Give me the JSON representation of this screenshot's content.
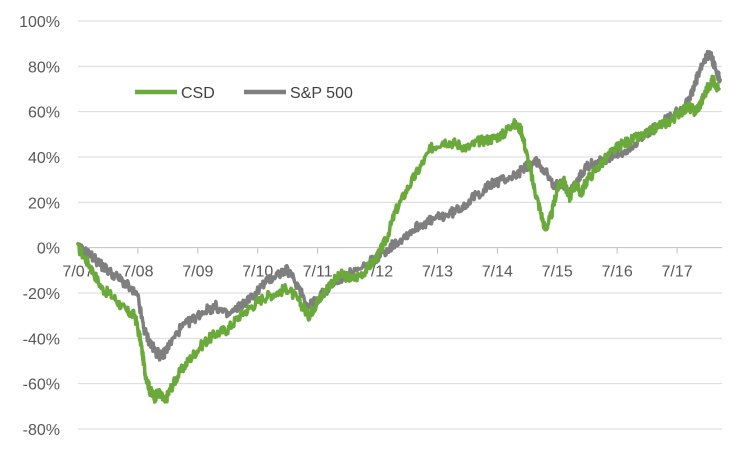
{
  "chart_data": {
    "type": "line",
    "title": "",
    "xlabel": "",
    "ylabel": "",
    "x_tick_labels": [
      "7/07",
      "7/08",
      "7/09",
      "7/10",
      "7/11",
      "7/12",
      "7/13",
      "7/14",
      "7/15",
      "7/16",
      "7/17"
    ],
    "y_tick_labels": [
      "100%",
      "80%",
      "60%",
      "40%",
      "20%",
      "0%",
      "-20%",
      "-40%",
      "-60%",
      "-80%"
    ],
    "y_ticks": [
      100,
      80,
      60,
      40,
      20,
      0,
      -20,
      -40,
      -60,
      -80
    ],
    "ylim": [
      -80,
      100
    ],
    "xlim": [
      2007.5,
      2018.25
    ],
    "grid": true,
    "legend_placement": "top-left",
    "series": [
      {
        "name": "CSD",
        "color": "#6aaa3a",
        "x": [
          2007.5,
          2007.7,
          2007.9,
          2008.1,
          2008.3,
          2008.45,
          2008.55,
          2008.62,
          2008.7,
          2008.78,
          2008.85,
          2008.95,
          2009.05,
          2009.2,
          2009.4,
          2009.6,
          2009.8,
          2010.0,
          2010.2,
          2010.4,
          2010.6,
          2010.8,
          2011.0,
          2011.2,
          2011.35,
          2011.45,
          2011.55,
          2011.7,
          2011.9,
          2012.1,
          2012.3,
          2012.5,
          2012.65,
          2012.8,
          2013.0,
          2013.2,
          2013.4,
          2013.6,
          2013.8,
          2014.0,
          2014.2,
          2014.4,
          2014.6,
          2014.75,
          2014.9,
          2015.0,
          2015.1,
          2015.2,
          2015.3,
          2015.4,
          2015.5,
          2015.6,
          2015.7,
          2015.8,
          2015.9,
          2016.0,
          2016.2,
          2016.4,
          2016.6,
          2016.8,
          2017.0,
          2017.2,
          2017.4,
          2017.55,
          2017.7,
          2017.8,
          2017.9,
          2018.0,
          2018.1,
          2018.2
        ],
        "values": [
          0,
          -8,
          -18,
          -22,
          -28,
          -30,
          -42,
          -55,
          -63,
          -66,
          -64,
          -68,
          -62,
          -55,
          -48,
          -42,
          -38,
          -36,
          -30,
          -26,
          -22,
          -20,
          -18,
          -24,
          -30,
          -26,
          -22,
          -16,
          -12,
          -14,
          -10,
          -4,
          4,
          16,
          26,
          35,
          44,
          47,
          46,
          44,
          47,
          48,
          50,
          55,
          52,
          40,
          28,
          18,
          8,
          14,
          26,
          30,
          22,
          28,
          24,
          30,
          36,
          42,
          46,
          48,
          50,
          54,
          56,
          60,
          62,
          60,
          64,
          70,
          74,
          70
        ]
      },
      {
        "name": "S&P 500",
        "color": "#7f7f7f",
        "x": [
          2007.5,
          2007.7,
          2007.9,
          2008.1,
          2008.3,
          2008.5,
          2008.6,
          2008.7,
          2008.8,
          2008.9,
          2009.0,
          2009.2,
          2009.4,
          2009.6,
          2009.8,
          2010.0,
          2010.2,
          2010.4,
          2010.6,
          2010.8,
          2011.0,
          2011.2,
          2011.35,
          2011.45,
          2011.6,
          2011.8,
          2012.0,
          2012.2,
          2012.4,
          2012.6,
          2012.8,
          2013.0,
          2013.2,
          2013.4,
          2013.6,
          2013.8,
          2014.0,
          2014.2,
          2014.4,
          2014.6,
          2014.8,
          2015.0,
          2015.15,
          2015.3,
          2015.45,
          2015.55,
          2015.7,
          2015.85,
          2016.0,
          2016.2,
          2016.4,
          2016.6,
          2016.8,
          2017.0,
          2017.2,
          2017.4,
          2017.6,
          2017.75,
          2017.85,
          2017.95,
          2018.05,
          2018.15,
          2018.22
        ],
        "values": [
          0,
          -3,
          -8,
          -12,
          -16,
          -22,
          -36,
          -42,
          -46,
          -48,
          -44,
          -36,
          -32,
          -28,
          -26,
          -30,
          -26,
          -22,
          -16,
          -12,
          -10,
          -18,
          -26,
          -24,
          -20,
          -15,
          -12,
          -10,
          -6,
          -2,
          2,
          6,
          10,
          12,
          14,
          16,
          20,
          24,
          28,
          30,
          32,
          36,
          38,
          34,
          26,
          30,
          24,
          30,
          36,
          38,
          40,
          42,
          46,
          50,
          54,
          58,
          62,
          68,
          76,
          82,
          86,
          78,
          74
        ]
      }
    ]
  }
}
